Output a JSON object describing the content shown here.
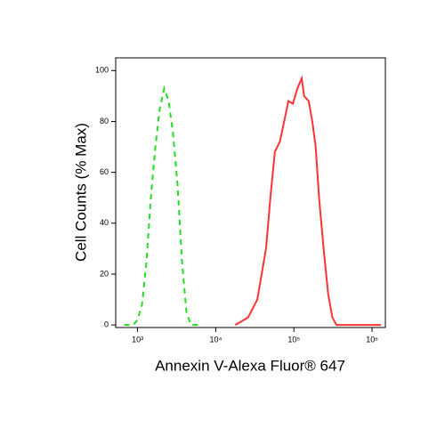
{
  "chart_data": {
    "type": "line",
    "x_label": "Annexin V-Alexa Fluor® 647",
    "y_label": "Cell Counts (% Max)",
    "x_scale": "log",
    "xlim": [
      525,
      1480000
    ],
    "ylim": [
      -1,
      105
    ],
    "xticks": [
      {
        "value": 1000,
        "label": "10³"
      },
      {
        "value": 10000,
        "label": "10⁴"
      },
      {
        "value": 100000,
        "label": "10⁵"
      },
      {
        "value": 1000000,
        "label": "10⁶"
      }
    ],
    "yticks": [
      0,
      20,
      40,
      60,
      80,
      100
    ],
    "series": [
      {
        "color": "#22dd22",
        "dashed": true,
        "x": [
          675,
          877,
          1000,
          1140,
          1300,
          1480,
          1690,
          1920,
          2190,
          2500,
          2850,
          3250,
          3700,
          4220,
          4810,
          6250
        ],
        "values": [
          0,
          0,
          2,
          8,
          25,
          50,
          70,
          85,
          93,
          88,
          75,
          55,
          25,
          5,
          0,
          0
        ]
      },
      {
        "color": "#ff3333",
        "dashed": false,
        "x": [
          17800,
          26000,
          34000,
          44000,
          50000,
          57000,
          66000,
          75000,
          85000,
          97000,
          111000,
          126000,
          135000,
          155000,
          172000,
          190000,
          210000,
          240000,
          275000,
          310000,
          350000,
          1300000
        ],
        "values": [
          0,
          3,
          10,
          30,
          50,
          68,
          72,
          80,
          88,
          87,
          93,
          97,
          90,
          88,
          80,
          70,
          50,
          30,
          12,
          3,
          0,
          0
        ]
      }
    ]
  }
}
